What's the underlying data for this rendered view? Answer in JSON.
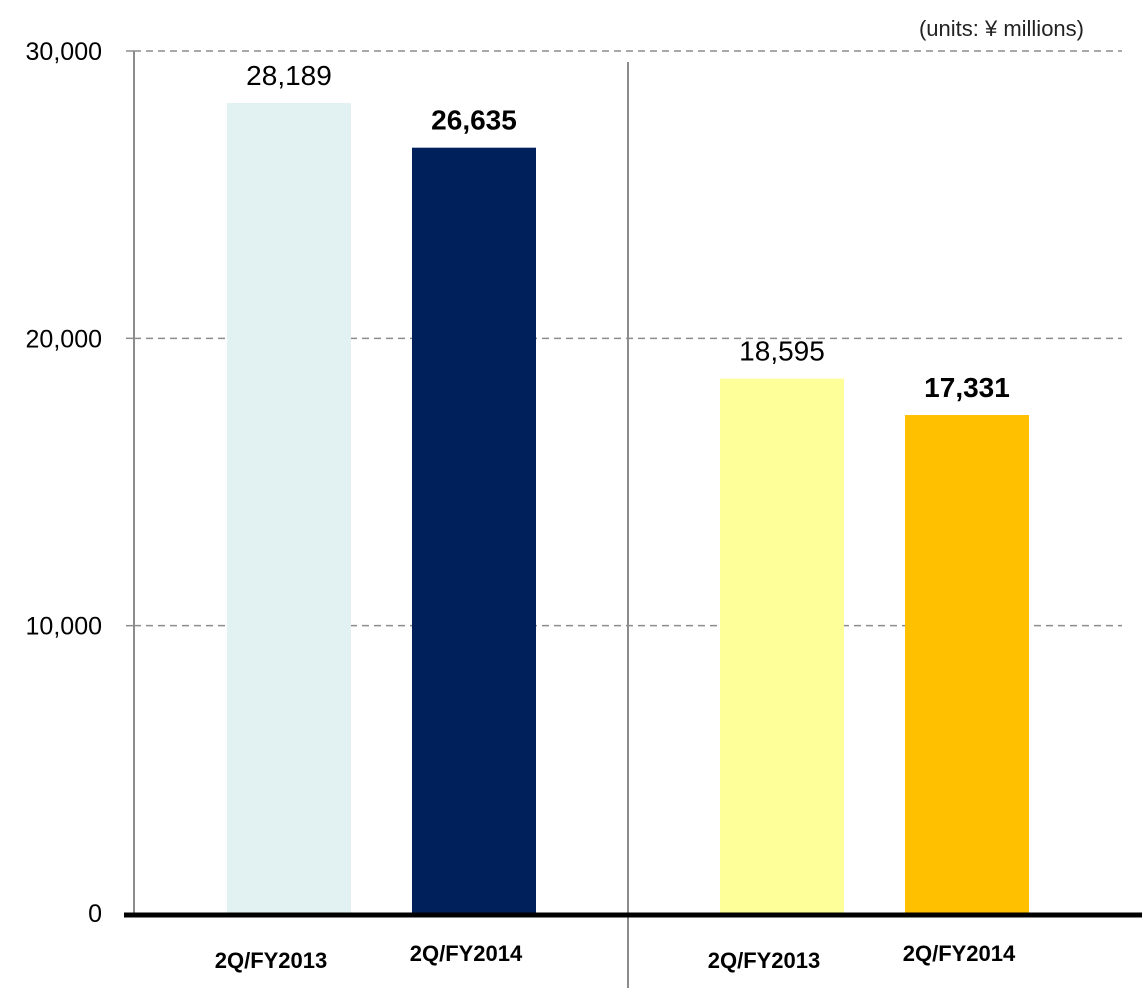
{
  "units_label": "(units: ¥ millions)",
  "chart_data": {
    "type": "bar",
    "ylim": [
      0,
      30000
    ],
    "yticks": [
      {
        "value": 0,
        "label": "0"
      },
      {
        "value": 10000,
        "label": "10,000"
      },
      {
        "value": 20000,
        "label": "20,000"
      },
      {
        "value": 30000,
        "label": "30,000"
      }
    ],
    "grid": true,
    "groups": [
      {
        "bars": [
          {
            "category": "2Q/FY2013",
            "value": 28189,
            "label": "28,189",
            "color": "#e2f2f2",
            "bold": false
          },
          {
            "category": "2Q/FY2014",
            "value": 26635,
            "label": "26,635",
            "color": "#00205c",
            "bold": true
          }
        ]
      },
      {
        "bars": [
          {
            "category": "2Q/FY2013",
            "value": 18595,
            "label": "18,595",
            "color": "#ffff99",
            "bold": false
          },
          {
            "category": "2Q/FY2014",
            "value": 17331,
            "label": "17,331",
            "color": "#ffc000",
            "bold": true
          }
        ]
      }
    ]
  }
}
